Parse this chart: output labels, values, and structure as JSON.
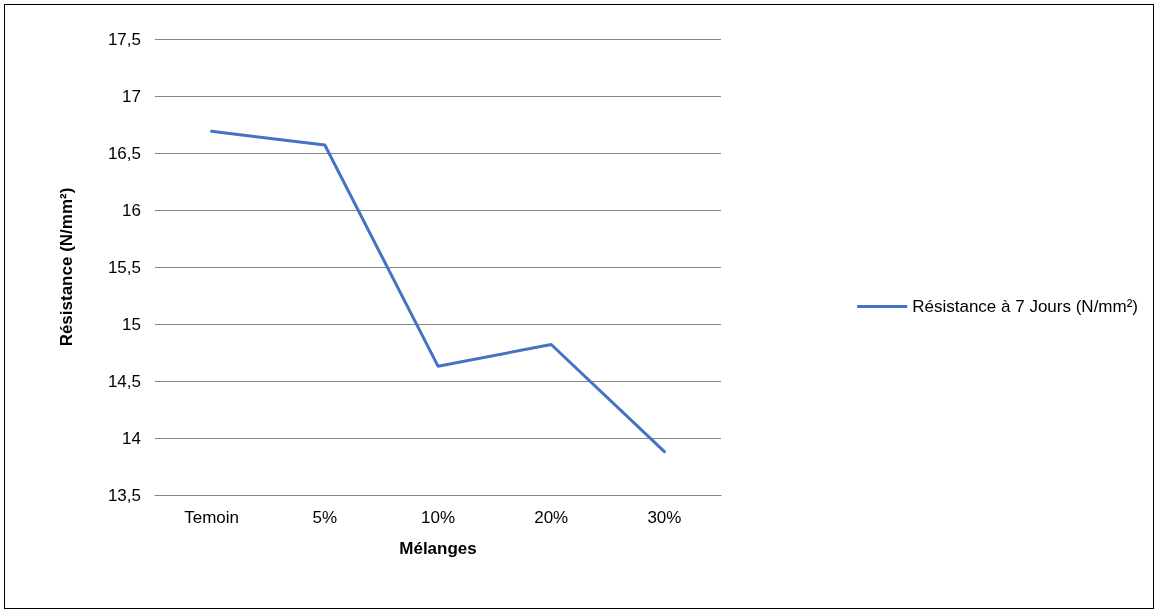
{
  "chart_data": {
    "type": "line",
    "xlabel": "Mélanges",
    "ylabel": "Résistance (N/mm²)",
    "categories": [
      "Temoin",
      "5%",
      "10%",
      "20%",
      "30%"
    ],
    "series": [
      {
        "name": "Résistance à 7 Jours (N/mm²)",
        "color": "#4472c4",
        "values": [
          16.69,
          16.57,
          14.63,
          14.82,
          13.88
        ]
      }
    ],
    "ylim": [
      13.5,
      17.5
    ],
    "yticks": [
      {
        "value": 13.5,
        "label": "13,5"
      },
      {
        "value": 14,
        "label": "14"
      },
      {
        "value": 14.5,
        "label": "14,5"
      },
      {
        "value": 15,
        "label": "15"
      },
      {
        "value": 15.5,
        "label": "15,5"
      },
      {
        "value": 16,
        "label": "16"
      },
      {
        "value": 16.5,
        "label": "16,5"
      },
      {
        "value": 17,
        "label": "17"
      },
      {
        "value": 17.5,
        "label": "17,5"
      }
    ],
    "grid": "y",
    "legend": "right",
    "marker": "none",
    "line_style": "solid"
  }
}
